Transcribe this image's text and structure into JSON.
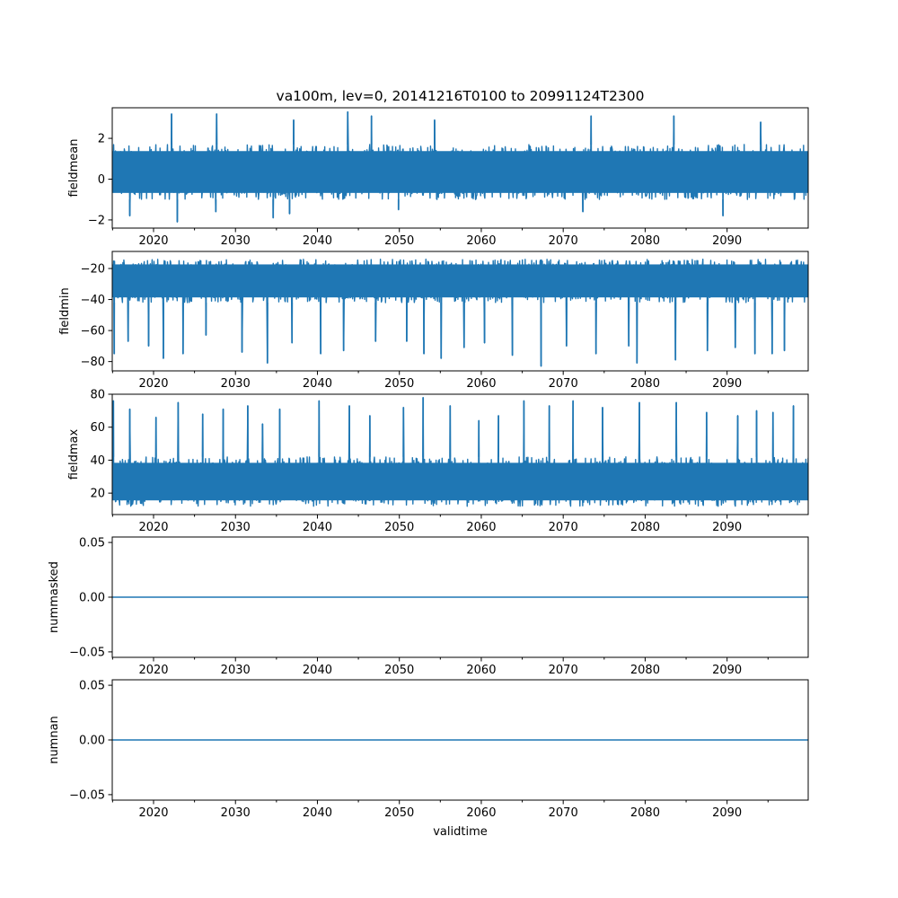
{
  "figure": {
    "title": "va100m, lev=0, 20141216T0100 to 20991124T2300",
    "xlabel": "validtime",
    "line_color": "#1f77b4"
  },
  "chart_data": [
    {
      "type": "line",
      "ylabel": "fieldmean",
      "xlim": [
        2014.96,
        2099.9
      ],
      "ylim": [
        -2.4,
        3.5
      ],
      "x_ticks": [
        2020,
        2030,
        2040,
        2050,
        2060,
        2070,
        2080,
        2090
      ],
      "y_ticks": [
        -2,
        0,
        2
      ],
      "y_tick_labels": [
        "−2",
        "0",
        "2"
      ],
      "series": [
        {
          "style": "dense-noise",
          "x_range": [
            2014.96,
            2099.9
          ],
          "typical_range": [
            -1.0,
            1.7
          ],
          "spikes_high": [
            [
              2022.2,
              3.2
            ],
            [
              2027.7,
              3.2
            ],
            [
              2037.1,
              2.9
            ],
            [
              2043.7,
              3.3
            ],
            [
              2046.6,
              3.1
            ],
            [
              2054.3,
              2.9
            ],
            [
              2073.4,
              3.1
            ],
            [
              2083.5,
              3.1
            ],
            [
              2094.1,
              2.8
            ]
          ],
          "spikes_low": [
            [
              2017.1,
              -1.8
            ],
            [
              2022.9,
              -2.1
            ],
            [
              2027.6,
              -1.6
            ],
            [
              2034.6,
              -1.9
            ],
            [
              2036.6,
              -1.7
            ],
            [
              2049.9,
              -1.5
            ],
            [
              2072.4,
              -1.6
            ],
            [
              2089.5,
              -1.8
            ]
          ]
        }
      ]
    },
    {
      "type": "line",
      "ylabel": "fieldmin",
      "xlim": [
        2014.96,
        2099.9
      ],
      "ylim": [
        -86,
        -9
      ],
      "x_ticks": [
        2020,
        2030,
        2040,
        2050,
        2060,
        2070,
        2080,
        2090
      ],
      "y_ticks": [
        -80,
        -60,
        -40,
        -20
      ],
      "y_tick_labels": [
        "−80",
        "−60",
        "−40",
        "−20"
      ],
      "series": [
        {
          "style": "dense-noise",
          "x_range": [
            2014.96,
            2099.9
          ],
          "typical_range": [
            -42,
            -14
          ],
          "spikes_high": [],
          "spikes_low": [
            [
              2015.2,
              -75
            ],
            [
              2016.9,
              -67
            ],
            [
              2019.4,
              -70
            ],
            [
              2021.2,
              -78
            ],
            [
              2023.6,
              -75
            ],
            [
              2026.4,
              -63
            ],
            [
              2030.8,
              -74
            ],
            [
              2033.9,
              -81
            ],
            [
              2036.9,
              -68
            ],
            [
              2040.4,
              -75
            ],
            [
              2043.2,
              -73
            ],
            [
              2047.1,
              -67
            ],
            [
              2050.9,
              -67
            ],
            [
              2053.0,
              -75
            ],
            [
              2055.1,
              -78
            ],
            [
              2057.9,
              -71
            ],
            [
              2060.4,
              -68
            ],
            [
              2063.8,
              -76
            ],
            [
              2067.3,
              -83
            ],
            [
              2070.4,
              -70
            ],
            [
              2074.0,
              -75
            ],
            [
              2078.0,
              -70
            ],
            [
              2079.0,
              -81
            ],
            [
              2083.7,
              -79
            ],
            [
              2087.6,
              -73
            ],
            [
              2091.0,
              -71
            ],
            [
              2093.4,
              -75
            ],
            [
              2095.5,
              -75
            ],
            [
              2097.0,
              -73
            ]
          ]
        }
      ]
    },
    {
      "type": "line",
      "ylabel": "fieldmax",
      "xlim": [
        2014.96,
        2099.9
      ],
      "ylim": [
        7,
        80
      ],
      "x_ticks": [
        2020,
        2030,
        2040,
        2050,
        2060,
        2070,
        2080,
        2090
      ],
      "y_ticks": [
        20,
        40,
        60,
        80
      ],
      "y_tick_labels": [
        "20",
        "40",
        "60",
        "80"
      ],
      "series": [
        {
          "style": "dense-noise",
          "x_range": [
            2014.96,
            2099.9
          ],
          "typical_range": [
            12,
            42
          ],
          "spikes_high": [
            [
              2015.1,
              76
            ],
            [
              2017.1,
              71
            ],
            [
              2020.3,
              66
            ],
            [
              2023.0,
              75
            ],
            [
              2026.0,
              68
            ],
            [
              2028.5,
              71
            ],
            [
              2031.5,
              73
            ],
            [
              2033.3,
              62
            ],
            [
              2035.4,
              71
            ],
            [
              2040.2,
              76
            ],
            [
              2043.9,
              73
            ],
            [
              2046.4,
              67
            ],
            [
              2050.5,
              72
            ],
            [
              2052.9,
              78
            ],
            [
              2056.2,
              73
            ],
            [
              2059.7,
              64
            ],
            [
              2062.1,
              67
            ],
            [
              2065.2,
              76
            ],
            [
              2068.3,
              73
            ],
            [
              2071.2,
              76
            ],
            [
              2074.8,
              72
            ],
            [
              2079.3,
              75
            ],
            [
              2083.8,
              75
            ],
            [
              2087.5,
              69
            ],
            [
              2091.3,
              67
            ],
            [
              2093.6,
              70
            ],
            [
              2095.6,
              69
            ],
            [
              2098.1,
              73
            ]
          ],
          "spikes_low": []
        }
      ]
    },
    {
      "type": "line",
      "ylabel": "nummasked",
      "xlim": [
        2014.96,
        2099.9
      ],
      "ylim": [
        -0.055,
        0.055
      ],
      "x_ticks": [
        2020,
        2030,
        2040,
        2050,
        2060,
        2070,
        2080,
        2090
      ],
      "y_ticks": [
        -0.05,
        0.0,
        0.05
      ],
      "y_tick_labels": [
        "−0.05",
        "0.00",
        "0.05"
      ],
      "series": [
        {
          "style": "constant",
          "x_range": [
            2014.96,
            2099.9
          ],
          "value": 0.0
        }
      ]
    },
    {
      "type": "line",
      "ylabel": "numnan",
      "xlim": [
        2014.96,
        2099.9
      ],
      "ylim": [
        -0.055,
        0.055
      ],
      "x_ticks": [
        2020,
        2030,
        2040,
        2050,
        2060,
        2070,
        2080,
        2090
      ],
      "y_ticks": [
        -0.05,
        0.0,
        0.05
      ],
      "y_tick_labels": [
        "−0.05",
        "0.00",
        "0.05"
      ],
      "series": [
        {
          "style": "constant",
          "x_range": [
            2014.96,
            2099.9
          ],
          "value": 0.0
        }
      ]
    }
  ]
}
